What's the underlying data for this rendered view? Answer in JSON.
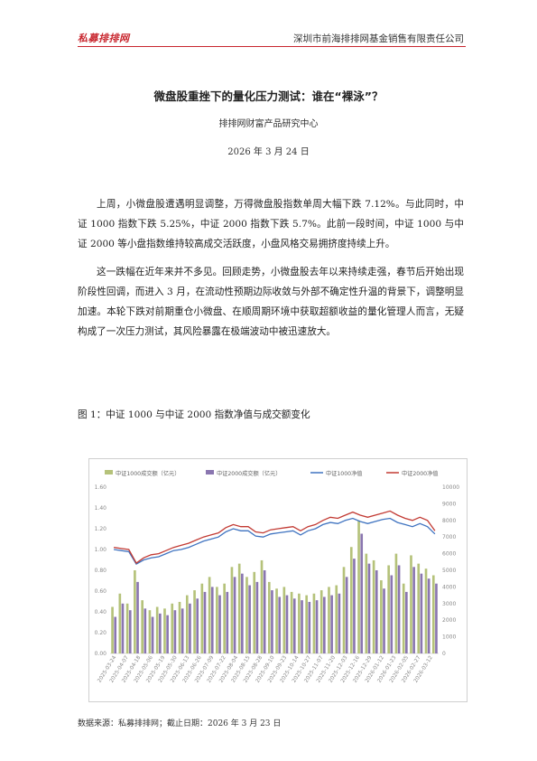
{
  "header": {
    "logo_text": "私募排排网",
    "company": "深圳市前海排排网基金销售有限责任公司",
    "accent_color": "#c8262e"
  },
  "article": {
    "title": "微盘股重挫下的量化压力测试：谁在“裸泳”？",
    "author": "排排网财富产品研究中心",
    "date": "2026 年 3 月 24 日",
    "paragraphs": [
      "上周，小微盘股遭遇明显调整，万得微盘股指数单周大幅下跌 7.12%。与此同时，中证 1000 指数下跌 5.25%，中证 2000 指数下跌 5.7%。此前一段时间，中证 1000 与中证 2000 等小盘指数维持较高成交活跃度，小盘风格交易拥挤度持续上升。",
      "这一跌幅在近年来并不多见。回顾走势，小微盘股去年以来持续走强，春节后开始出现阶段性回调，而进入 3 月，在流动性预期边际收敛与外部不确定性升温的背景下，调整明显加速。本轮下跌对前期重仓小微盘、在顺周期环境中获取超额收益的量化管理人而言，无疑构成了一次压力测试，其风险暴露在极端波动中被迅速放大。"
    ]
  },
  "figure": {
    "caption": "图 1：中证 1000 与中证 2000 指数净值与成交额变化",
    "source": "数据来源：私募排排网；截止日期：2026 年 3 月 23 日"
  },
  "chart_data": {
    "type": "bar",
    "title": "",
    "legend_position": "top",
    "series": [
      {
        "name": "中证1000成交额（亿元）",
        "kind": "bar",
        "axis": "right",
        "color": "#b5c27a"
      },
      {
        "name": "中证2000成交额（亿元）",
        "kind": "bar",
        "axis": "right",
        "color": "#8a76b0"
      },
      {
        "name": "中证1000净值",
        "kind": "line",
        "axis": "left",
        "color": "#3f73c0"
      },
      {
        "name": "中证2000净值",
        "kind": "line",
        "axis": "left",
        "color": "#c23a33"
      }
    ],
    "y_left": {
      "ticks": [
        "0.00",
        "0.20",
        "0.40",
        "0.60",
        "0.80",
        "1.00",
        "1.20",
        "1.40",
        "1.60"
      ],
      "lim": [
        0,
        1.6
      ]
    },
    "y_right": {
      "ticks": [
        "0",
        "1000",
        "2000",
        "3000",
        "4000",
        "5000",
        "6000",
        "7000",
        "8000",
        "9000",
        "10000"
      ],
      "lim": [
        0,
        10000
      ]
    },
    "x_ticks": [
      "2025-03-24",
      "2025-04-07",
      "2025-04-18",
      "2025-05-06",
      "2025-05-19",
      "2025-05-30",
      "2025-06-13",
      "2025-06-26",
      "2025-07-09",
      "2025-07-22",
      "2025-08-04",
      "2025-08-15",
      "2025-08-28",
      "2025-09-10",
      "2025-09-23",
      "2025-10-14",
      "2025-10-27",
      "2025-11-07",
      "2025-11-20",
      "2025-12-03",
      "2025-12-16",
      "2025-12-29",
      "2026-01-12",
      "2026-01-23",
      "2026-02-05",
      "2026-02-27",
      "2026-03-12"
    ],
    "nav_1000": [
      1.0,
      0.99,
      0.98,
      0.86,
      0.9,
      0.92,
      0.93,
      0.96,
      0.99,
      1.0,
      1.02,
      1.05,
      1.08,
      1.1,
      1.12,
      1.17,
      1.2,
      1.18,
      1.18,
      1.13,
      1.12,
      1.15,
      1.16,
      1.17,
      1.18,
      1.14,
      1.18,
      1.2,
      1.24,
      1.26,
      1.25,
      1.28,
      1.3,
      1.27,
      1.25,
      1.27,
      1.29,
      1.3,
      1.26,
      1.24,
      1.22,
      1.25,
      1.22,
      1.15
    ],
    "nav_2000": [
      1.02,
      1.01,
      1.0,
      0.87,
      0.92,
      0.95,
      0.96,
      0.99,
      1.02,
      1.04,
      1.06,
      1.09,
      1.12,
      1.14,
      1.16,
      1.21,
      1.24,
      1.22,
      1.22,
      1.17,
      1.16,
      1.19,
      1.2,
      1.21,
      1.22,
      1.18,
      1.22,
      1.24,
      1.28,
      1.31,
      1.3,
      1.33,
      1.36,
      1.33,
      1.31,
      1.33,
      1.35,
      1.37,
      1.33,
      1.3,
      1.28,
      1.31,
      1.28,
      1.18
    ],
    "vol_1000": [
      2800,
      3600,
      3000,
      5000,
      3200,
      2600,
      2800,
      2700,
      3000,
      3100,
      3500,
      3800,
      4200,
      4600,
      4000,
      4200,
      5200,
      5400,
      4600,
      4900,
      5600,
      4300,
      3900,
      4000,
      3700,
      3600,
      3500,
      3600,
      3800,
      4000,
      4100,
      5200,
      6400,
      8000,
      6000,
      5600,
      4400,
      5300,
      6000,
      4200,
      5900,
      5400,
      5100,
      4700
    ],
    "vol_2000": [
      2200,
      3000,
      2600,
      4300,
      2700,
      2200,
      2400,
      2300,
      2600,
      2700,
      3000,
      3300,
      3700,
      4000,
      3500,
      3700,
      4600,
      4800,
      4100,
      4300,
      5000,
      3800,
      3400,
      3500,
      3300,
      3200,
      3100,
      3200,
      3400,
      3500,
      3600,
      4600,
      5700,
      7200,
      5400,
      5000,
      3900,
      4700,
      5300,
      3700,
      5200,
      4800,
      4500,
      4200
    ]
  }
}
